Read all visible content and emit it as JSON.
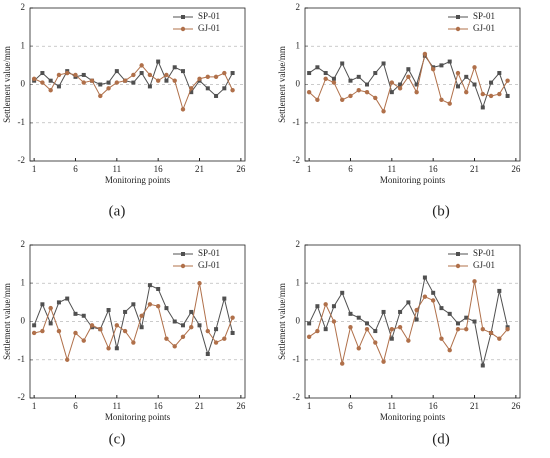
{
  "chart_data": [
    {
      "type": "line",
      "caption": "(a)",
      "xlabel": "Monitoring points",
      "ylabel": "Settlement value/mm",
      "x": [
        1,
        2,
        3,
        4,
        5,
        6,
        7,
        8,
        9,
        10,
        11,
        12,
        13,
        14,
        15,
        16,
        17,
        18,
        19,
        20,
        21,
        22,
        23,
        24,
        25
      ],
      "xlim": [
        0.5,
        26.5
      ],
      "xticks": [
        1,
        6,
        11,
        16,
        21,
        26
      ],
      "ylim": [
        -2,
        2
      ],
      "yticks": [
        -2,
        -1,
        0,
        1,
        2
      ],
      "grid": true,
      "legend": "upper right",
      "series": [
        {
          "name": "SP-01",
          "color": "#505050",
          "marker": "square",
          "values": [
            0.1,
            0.3,
            0.1,
            -0.05,
            0.35,
            0.2,
            0.25,
            0.1,
            0,
            0.05,
            0.35,
            0.1,
            0.05,
            0.3,
            -0.05,
            0.6,
            0.1,
            0.45,
            0.35,
            -0.2,
            0.1,
            -0.1,
            -0.3,
            -0.1,
            0.3
          ]
        },
        {
          "name": "GJ-01",
          "color": "#b0704a",
          "marker": "circle",
          "values": [
            0.15,
            0.05,
            -0.15,
            0.25,
            0.3,
            0.25,
            0.05,
            0.1,
            -0.3,
            -0.1,
            0.05,
            0.1,
            0.25,
            0.5,
            0.25,
            0.1,
            0.25,
            0.1,
            -0.65,
            -0.1,
            0.15,
            0.2,
            0.2,
            0.3,
            -0.15
          ]
        }
      ]
    },
    {
      "type": "line",
      "caption": "(b)",
      "xlabel": "Monitoring points",
      "ylabel": "Settlement value/mm",
      "x": [
        1,
        2,
        3,
        4,
        5,
        6,
        7,
        8,
        9,
        10,
        11,
        12,
        13,
        14,
        15,
        16,
        17,
        18,
        19,
        20,
        21,
        22,
        23,
        24,
        25
      ],
      "xlim": [
        0.5,
        26.5
      ],
      "xticks": [
        1,
        6,
        11,
        16,
        21,
        26
      ],
      "ylim": [
        -2,
        2
      ],
      "yticks": [
        -2,
        -1,
        0,
        1,
        2
      ],
      "grid": true,
      "legend": "upper right",
      "series": [
        {
          "name": "SP-01",
          "color": "#505050",
          "marker": "square",
          "values": [
            0.3,
            0.45,
            0.3,
            0.15,
            0.55,
            0.1,
            0.2,
            0,
            0.3,
            0.55,
            -0.2,
            0,
            0.4,
            0,
            0.75,
            0.45,
            0.5,
            0.6,
            -0.05,
            0.2,
            0,
            -0.6,
            0.05,
            0.3,
            -0.3
          ]
        },
        {
          "name": "GJ-01",
          "color": "#b0704a",
          "marker": "circle",
          "values": [
            -0.2,
            -0.4,
            0.15,
            0.05,
            -0.4,
            -0.3,
            -0.15,
            -0.2,
            -0.35,
            -0.7,
            0.05,
            -0.1,
            0.2,
            -0.2,
            0.8,
            0.4,
            -0.4,
            -0.5,
            0.3,
            -0.2,
            0.45,
            -0.25,
            -0.3,
            -0.25,
            0.1
          ]
        }
      ]
    },
    {
      "type": "line",
      "caption": "(c)",
      "xlabel": "Monitoring points",
      "ylabel": "Settlement value/mm",
      "x": [
        1,
        2,
        3,
        4,
        5,
        6,
        7,
        8,
        9,
        10,
        11,
        12,
        13,
        14,
        15,
        16,
        17,
        18,
        19,
        20,
        21,
        22,
        23,
        24,
        25
      ],
      "xlim": [
        0.5,
        26.5
      ],
      "xticks": [
        1,
        6,
        11,
        16,
        21,
        26
      ],
      "ylim": [
        -2,
        2
      ],
      "yticks": [
        -2,
        -1,
        0,
        1,
        2
      ],
      "grid": true,
      "legend": "upper right",
      "series": [
        {
          "name": "SP-01",
          "color": "#505050",
          "marker": "square",
          "values": [
            -0.1,
            0.45,
            -0.05,
            0.5,
            0.6,
            0.2,
            0.15,
            -0.15,
            -0.2,
            0.3,
            -0.7,
            0.25,
            0.45,
            -0.15,
            0.95,
            0.85,
            0.35,
            0,
            -0.1,
            0.25,
            -0.1,
            -0.85,
            -0.2,
            0.6,
            -0.3
          ]
        },
        {
          "name": "GJ-01",
          "color": "#b0704a",
          "marker": "circle",
          "values": [
            -0.3,
            -0.25,
            0.35,
            -0.25,
            -1,
            -0.3,
            -0.5,
            -0.1,
            -0.2,
            -0.7,
            -0.1,
            -0.25,
            -0.55,
            0.15,
            0.45,
            0.4,
            -0.45,
            -0.65,
            -0.4,
            -0.15,
            1,
            -0.25,
            -0.55,
            -0.45,
            0.1
          ]
        }
      ]
    },
    {
      "type": "line",
      "caption": "(d)",
      "xlabel": "Monitoring points",
      "ylabel": "Settlement value/mm",
      "x": [
        1,
        2,
        3,
        4,
        5,
        6,
        7,
        8,
        9,
        10,
        11,
        12,
        13,
        14,
        15,
        16,
        17,
        18,
        19,
        20,
        21,
        22,
        23,
        24,
        25
      ],
      "xlim": [
        0.5,
        26.5
      ],
      "xticks": [
        1,
        6,
        11,
        16,
        21,
        26
      ],
      "ylim": [
        -2,
        2
      ],
      "yticks": [
        -2,
        -1,
        0,
        1,
        2
      ],
      "grid": true,
      "legend": "upper right",
      "series": [
        {
          "name": "SP-01",
          "color": "#505050",
          "marker": "square",
          "values": [
            -0.05,
            0.4,
            -0.2,
            0.4,
            0.75,
            0.2,
            0.1,
            -0.05,
            -0.25,
            0.25,
            -0.45,
            0.25,
            0.5,
            0.05,
            1.15,
            0.75,
            0.35,
            0.2,
            -0.05,
            0.1,
            0,
            -1.15,
            -0.3,
            0.8,
            -0.15
          ]
        },
        {
          "name": "GJ-01",
          "color": "#b0704a",
          "marker": "circle",
          "values": [
            -0.4,
            -0.25,
            0.45,
            0,
            -1.1,
            -0.15,
            -0.7,
            -0.2,
            -0.55,
            -1.05,
            -0.2,
            -0.15,
            -0.5,
            0.3,
            0.65,
            0.55,
            -0.45,
            -0.75,
            -0.2,
            -0.2,
            1.05,
            -0.2,
            -0.3,
            -0.45,
            -0.2
          ]
        }
      ]
    }
  ]
}
